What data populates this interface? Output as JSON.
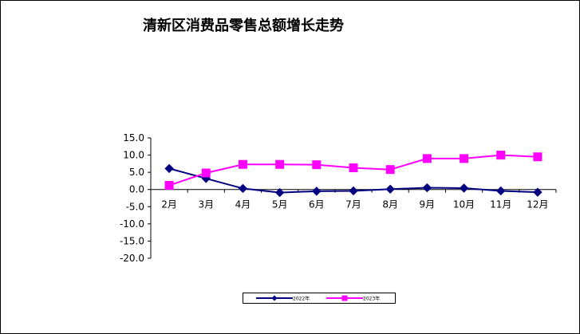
{
  "chart_data": {
    "type": "line",
    "title": "清新区消费品零售总额增长走势",
    "xlabel": "",
    "ylabel": "",
    "categories": [
      "2月",
      "3月",
      "4月",
      "5月",
      "6月",
      "7月",
      "8月",
      "9月",
      "10月",
      "11月",
      "12月"
    ],
    "ylim": [
      -20.0,
      15.0
    ],
    "yticks": [
      "15.0",
      "10.0",
      "5.0",
      "0.0",
      "-5.0",
      "-10.0",
      "-15.0",
      "-20.0"
    ],
    "ytick_values": [
      15,
      10,
      5,
      0,
      -5,
      -10,
      -15,
      -20
    ],
    "grid": false,
    "legend_position": "bottom",
    "series": [
      {
        "name": "2022年",
        "color": "#000080",
        "marker": "diamond",
        "values": [
          6.1,
          3.2,
          0.3,
          -0.9,
          -0.5,
          -0.4,
          0.1,
          0.5,
          0.4,
          -0.4,
          -0.8
        ]
      },
      {
        "name": "2023年",
        "color": "#FF00FF",
        "marker": "square",
        "values": [
          1.2,
          4.8,
          7.3,
          7.3,
          7.2,
          6.3,
          5.8,
          9.0,
          9.0,
          10.0,
          9.5
        ]
      }
    ]
  }
}
